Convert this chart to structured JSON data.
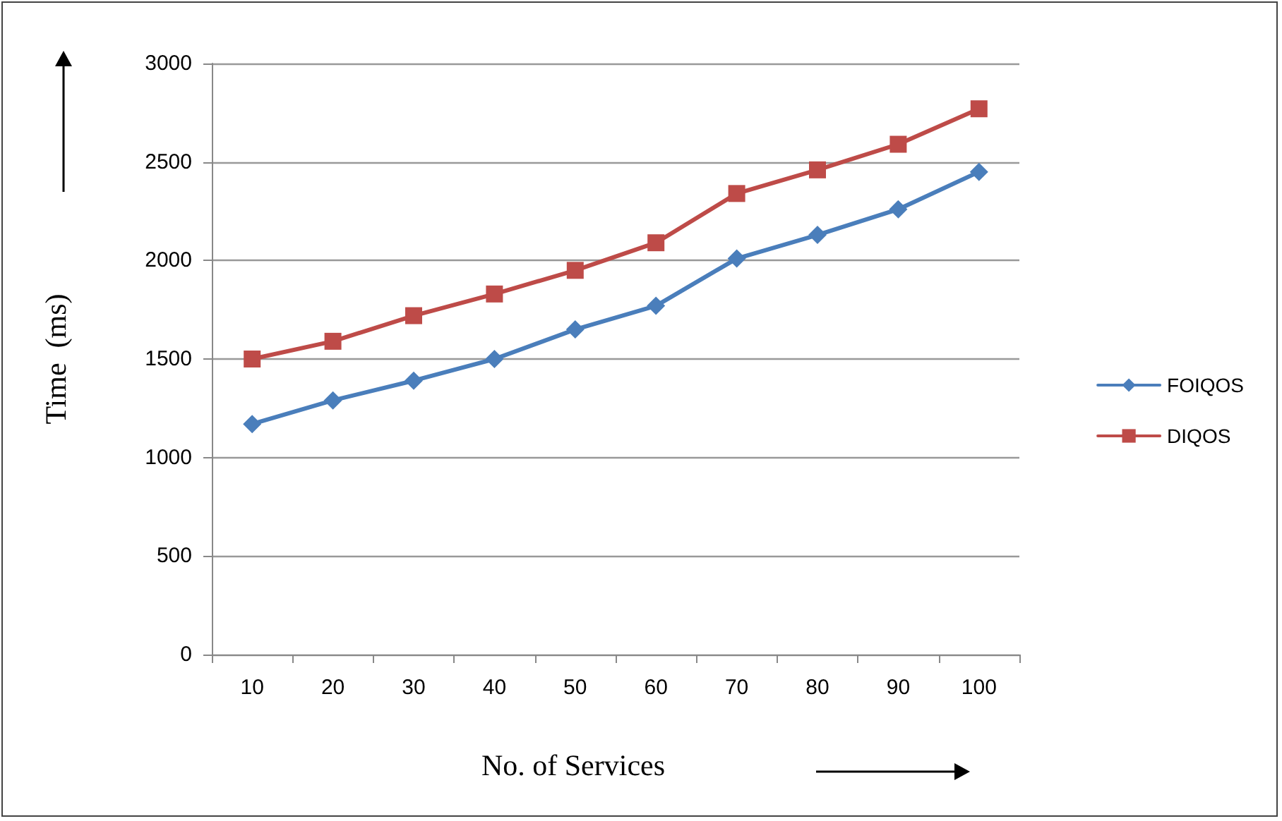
{
  "chart_data": {
    "type": "line",
    "xlabel": "No. of Services",
    "ylabel": "Time  (ms)",
    "categories": [
      "10",
      "20",
      "30",
      "40",
      "50",
      "60",
      "70",
      "80",
      "90",
      "100"
    ],
    "series": [
      {
        "name": "FOIQOS",
        "color": "#4a7ebb",
        "marker": "diamond",
        "values": [
          1170,
          1290,
          1390,
          1500,
          1650,
          1770,
          2010,
          2130,
          2260,
          2450
        ]
      },
      {
        "name": "DIQOS",
        "color": "#be4b48",
        "marker": "square",
        "values": [
          1500,
          1590,
          1720,
          1830,
          1950,
          2090,
          2340,
          2460,
          2590,
          2770
        ]
      }
    ],
    "ylim": [
      0,
      3000
    ],
    "yticks": [
      0,
      500,
      1000,
      1500,
      2000,
      2500,
      3000
    ],
    "grid": "y",
    "legend": "right",
    "line_style": "solid"
  }
}
